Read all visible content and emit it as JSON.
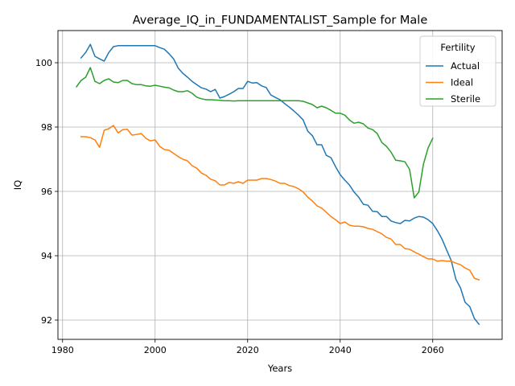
{
  "chart_data": {
    "type": "line",
    "title": "Average_IQ_in_FUNDAMENTALIST_Sample for Male",
    "xlabel": "Years",
    "ylabel": "IQ",
    "xlim": [
      1979,
      2075
    ],
    "ylim": [
      91.4,
      101.0
    ],
    "xticks": [
      1980,
      2000,
      2020,
      2040,
      2060
    ],
    "yticks": [
      92,
      94,
      96,
      98,
      100
    ],
    "grid": true,
    "legend": {
      "title": "Fertility",
      "placement": "top-right"
    },
    "colors": {
      "Actual": "#1f77b4",
      "Ideal": "#ff7f0e",
      "Sterile": "#2ca02c"
    },
    "series": [
      {
        "name": "Actual",
        "x": [
          1984,
          1985,
          1986,
          1987,
          1988,
          1989,
          1990,
          1991,
          1992,
          1993,
          1994,
          1995,
          1996,
          1997,
          1998,
          1999,
          2000,
          2001,
          2002,
          2003,
          2004,
          2005,
          2006,
          2007,
          2008,
          2009,
          2010,
          2011,
          2012,
          2013,
          2014,
          2015,
          2016,
          2017,
          2018,
          2019,
          2020,
          2021,
          2022,
          2023,
          2024,
          2025,
          2026,
          2027,
          2028,
          2029,
          2030,
          2031,
          2032,
          2033,
          2034,
          2035,
          2036,
          2037,
          2038,
          2039,
          2040,
          2041,
          2042,
          2043,
          2044,
          2045,
          2046,
          2047,
          2048,
          2049,
          2050,
          2051,
          2052,
          2053,
          2054,
          2055,
          2056,
          2057,
          2058,
          2059,
          2060,
          2061,
          2062,
          2063,
          2064,
          2065,
          2066,
          2067,
          2068,
          2069,
          2070
        ],
        "values": [
          100.15,
          100.32,
          100.57,
          100.2,
          100.12,
          100.05,
          100.32,
          100.5,
          100.53,
          100.53,
          100.53,
          100.53,
          100.53,
          100.53,
          100.53,
          100.53,
          100.53,
          100.47,
          100.42,
          100.28,
          100.12,
          99.83,
          99.67,
          99.55,
          99.42,
          99.32,
          99.22,
          99.18,
          99.1,
          99.17,
          98.9,
          98.95,
          99.02,
          99.1,
          99.2,
          99.2,
          99.42,
          99.37,
          99.38,
          99.28,
          99.23,
          99.0,
          98.92,
          98.85,
          98.73,
          98.62,
          98.5,
          98.37,
          98.22,
          97.87,
          97.73,
          97.45,
          97.45,
          97.12,
          97.05,
          96.77,
          96.52,
          96.35,
          96.2,
          95.98,
          95.82,
          95.6,
          95.57,
          95.38,
          95.37,
          95.22,
          95.22,
          95.08,
          95.03,
          95.0,
          95.1,
          95.08,
          95.17,
          95.22,
          95.2,
          95.12,
          95.0,
          94.78,
          94.52,
          94.18,
          93.85,
          93.27,
          93.0,
          92.55,
          92.42,
          92.05,
          91.87
        ]
      },
      {
        "name": "Ideal",
        "x": [
          1984,
          1985,
          1986,
          1987,
          1988,
          1989,
          1990,
          1991,
          1992,
          1993,
          1994,
          1995,
          1996,
          1997,
          1998,
          1999,
          2000,
          2001,
          2002,
          2003,
          2004,
          2005,
          2006,
          2007,
          2008,
          2009,
          2010,
          2011,
          2012,
          2013,
          2014,
          2015,
          2016,
          2017,
          2018,
          2019,
          2020,
          2021,
          2022,
          2023,
          2024,
          2025,
          2026,
          2027,
          2028,
          2029,
          2030,
          2031,
          2032,
          2033,
          2034,
          2035,
          2036,
          2037,
          2038,
          2039,
          2040,
          2041,
          2042,
          2043,
          2044,
          2045,
          2046,
          2047,
          2048,
          2049,
          2050,
          2051,
          2052,
          2053,
          2054,
          2055,
          2056,
          2057,
          2058,
          2059,
          2060,
          2061,
          2062,
          2063,
          2064,
          2065,
          2066,
          2067,
          2068,
          2069,
          2070
        ],
        "values": [
          97.7,
          97.7,
          97.67,
          97.6,
          97.37,
          97.9,
          97.95,
          98.05,
          97.82,
          97.92,
          97.93,
          97.75,
          97.77,
          97.8,
          97.65,
          97.57,
          97.6,
          97.4,
          97.3,
          97.28,
          97.18,
          97.08,
          97.0,
          96.95,
          96.8,
          96.72,
          96.57,
          96.5,
          96.38,
          96.33,
          96.2,
          96.2,
          96.28,
          96.25,
          96.3,
          96.25,
          96.35,
          96.35,
          96.35,
          96.4,
          96.4,
          96.37,
          96.32,
          96.25,
          96.25,
          96.18,
          96.15,
          96.08,
          95.98,
          95.82,
          95.7,
          95.55,
          95.48,
          95.35,
          95.22,
          95.12,
          95.0,
          95.05,
          94.95,
          94.92,
          94.92,
          94.9,
          94.85,
          94.82,
          94.75,
          94.68,
          94.57,
          94.52,
          94.35,
          94.35,
          94.22,
          94.2,
          94.12,
          94.05,
          93.97,
          93.9,
          93.9,
          93.83,
          93.85,
          93.83,
          93.83,
          93.77,
          93.72,
          93.62,
          93.55,
          93.3,
          93.25
        ]
      },
      {
        "name": "Sterile",
        "x": [
          1983,
          1984,
          1985,
          1986,
          1987,
          1988,
          1989,
          1990,
          1991,
          1992,
          1993,
          1994,
          1995,
          1996,
          1997,
          1998,
          1999,
          2000,
          2001,
          2002,
          2003,
          2004,
          2005,
          2006,
          2007,
          2008,
          2009,
          2010,
          2011,
          2012,
          2013,
          2014,
          2015,
          2016,
          2017,
          2018,
          2019,
          2020,
          2021,
          2022,
          2023,
          2024,
          2025,
          2026,
          2027,
          2028,
          2029,
          2030,
          2031,
          2032,
          2033,
          2034,
          2035,
          2036,
          2037,
          2038,
          2039,
          2040,
          2041,
          2042,
          2043,
          2044,
          2045,
          2046,
          2047,
          2048,
          2049,
          2050,
          2051,
          2052,
          2053,
          2054,
          2055,
          2056,
          2057,
          2058,
          2059,
          2060
        ],
        "values": [
          99.25,
          99.45,
          99.55,
          99.85,
          99.42,
          99.35,
          99.45,
          99.5,
          99.4,
          99.38,
          99.45,
          99.45,
          99.35,
          99.32,
          99.32,
          99.28,
          99.27,
          99.3,
          99.27,
          99.24,
          99.22,
          99.15,
          99.1,
          99.1,
          99.13,
          99.05,
          98.93,
          98.88,
          98.85,
          98.85,
          98.84,
          98.83,
          98.82,
          98.82,
          98.81,
          98.82,
          98.82,
          98.82,
          98.82,
          98.82,
          98.82,
          98.82,
          98.82,
          98.82,
          98.82,
          98.82,
          98.82,
          98.82,
          98.82,
          98.8,
          98.75,
          98.7,
          98.6,
          98.65,
          98.6,
          98.52,
          98.43,
          98.43,
          98.37,
          98.22,
          98.12,
          98.15,
          98.1,
          97.97,
          97.92,
          97.8,
          97.52,
          97.4,
          97.22,
          96.97,
          96.95,
          96.92,
          96.68,
          95.8,
          95.98,
          96.85,
          97.35,
          97.65
        ]
      }
    ]
  }
}
